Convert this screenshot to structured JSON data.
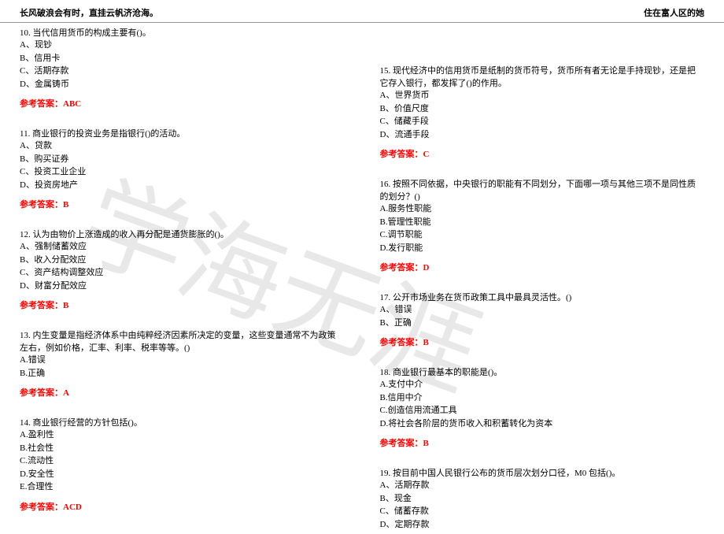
{
  "header": {
    "left": "长风破浪会有时，直挂云帆济沧海。",
    "right": "住在富人区的她"
  },
  "watermark": "学海无涯",
  "colors": {
    "answer": "#ff0000",
    "text": "#000000",
    "border": "#999999",
    "watermark": "#e8e8e8",
    "bg": "#ffffff"
  },
  "left_col": [
    {
      "num": "10.",
      "text": "当代信用货币的构成主要有()。",
      "options": [
        "A、现钞",
        "B、信用卡",
        "C、活期存款",
        "D、金属铸币"
      ],
      "answer": "参考答案：ABC"
    },
    {
      "num": "11.",
      "text": "商业银行的投资业务是指银行()的活动。",
      "options": [
        "A、贷款",
        "B、购买证券",
        "C、投资工业企业",
        "D、投资房地产"
      ],
      "answer": "参考答案：B"
    },
    {
      "num": "12.",
      "text": "认为由物价上涨造成的收入再分配是通货膨胀的()。",
      "options": [
        "A、强制储蓄效应",
        "B、收入分配效应",
        "C、资产结构调整效应",
        "D、财富分配效应"
      ],
      "answer": "参考答案：B"
    },
    {
      "num": "13.",
      "text": "内生变量是指经济体系中由纯粹经济因素所决定的变量，这些变量通常不为政策左右，例如价格，汇率、利率、税率等等。()",
      "options": [
        "A.错误",
        "B.正确"
      ],
      "answer": "参考答案：A"
    },
    {
      "num": "14.",
      "text": "商业银行经营的方针包括()。",
      "options": [
        "A.盈利性",
        "B.社会性",
        "C.流动性",
        "D.安全性",
        "E.合理性"
      ],
      "answer": "参考答案：ACD"
    }
  ],
  "right_col": [
    {
      "num": "15.",
      "text": "现代经济中的信用货币是纸制的货币符号，货币所有者无论是手持现钞，还是把它存入银行，都发挥了()的作用。",
      "options": [
        "A、世界货币",
        "B、价值尺度",
        "C、储藏手段",
        "D、流通手段"
      ],
      "answer": "参考答案：C"
    },
    {
      "num": "16.",
      "text": "按照不同依据，中央银行的职能有不同划分，下面哪一项与其他三项不是同性质的划分？()",
      "options": [
        "A.服务性职能",
        "B.管理性职能",
        "C.调节职能",
        "D.发行职能"
      ],
      "answer": "参考答案：D"
    },
    {
      "num": "17.",
      "text": "公开市场业务在货币政策工具中最具灵活性。()",
      "options": [
        "A、错误",
        "B、正确"
      ],
      "answer": "参考答案：B"
    },
    {
      "num": "18.",
      "text": "商业银行最基本的职能是()。",
      "options": [
        "A.支付中介",
        "B.信用中介",
        "C.创造信用流通工具",
        "D.将社会各阶层的货币收入和积蓄转化为资本"
      ],
      "answer": "参考答案：B"
    },
    {
      "num": "19.",
      "text": "按目前中国人民银行公布的货币层次划分口径，M0 包括()。",
      "options": [
        "A、活期存款",
        "B、现金",
        "C、储蓄存款",
        "D、定期存款"
      ],
      "answer": ""
    }
  ]
}
